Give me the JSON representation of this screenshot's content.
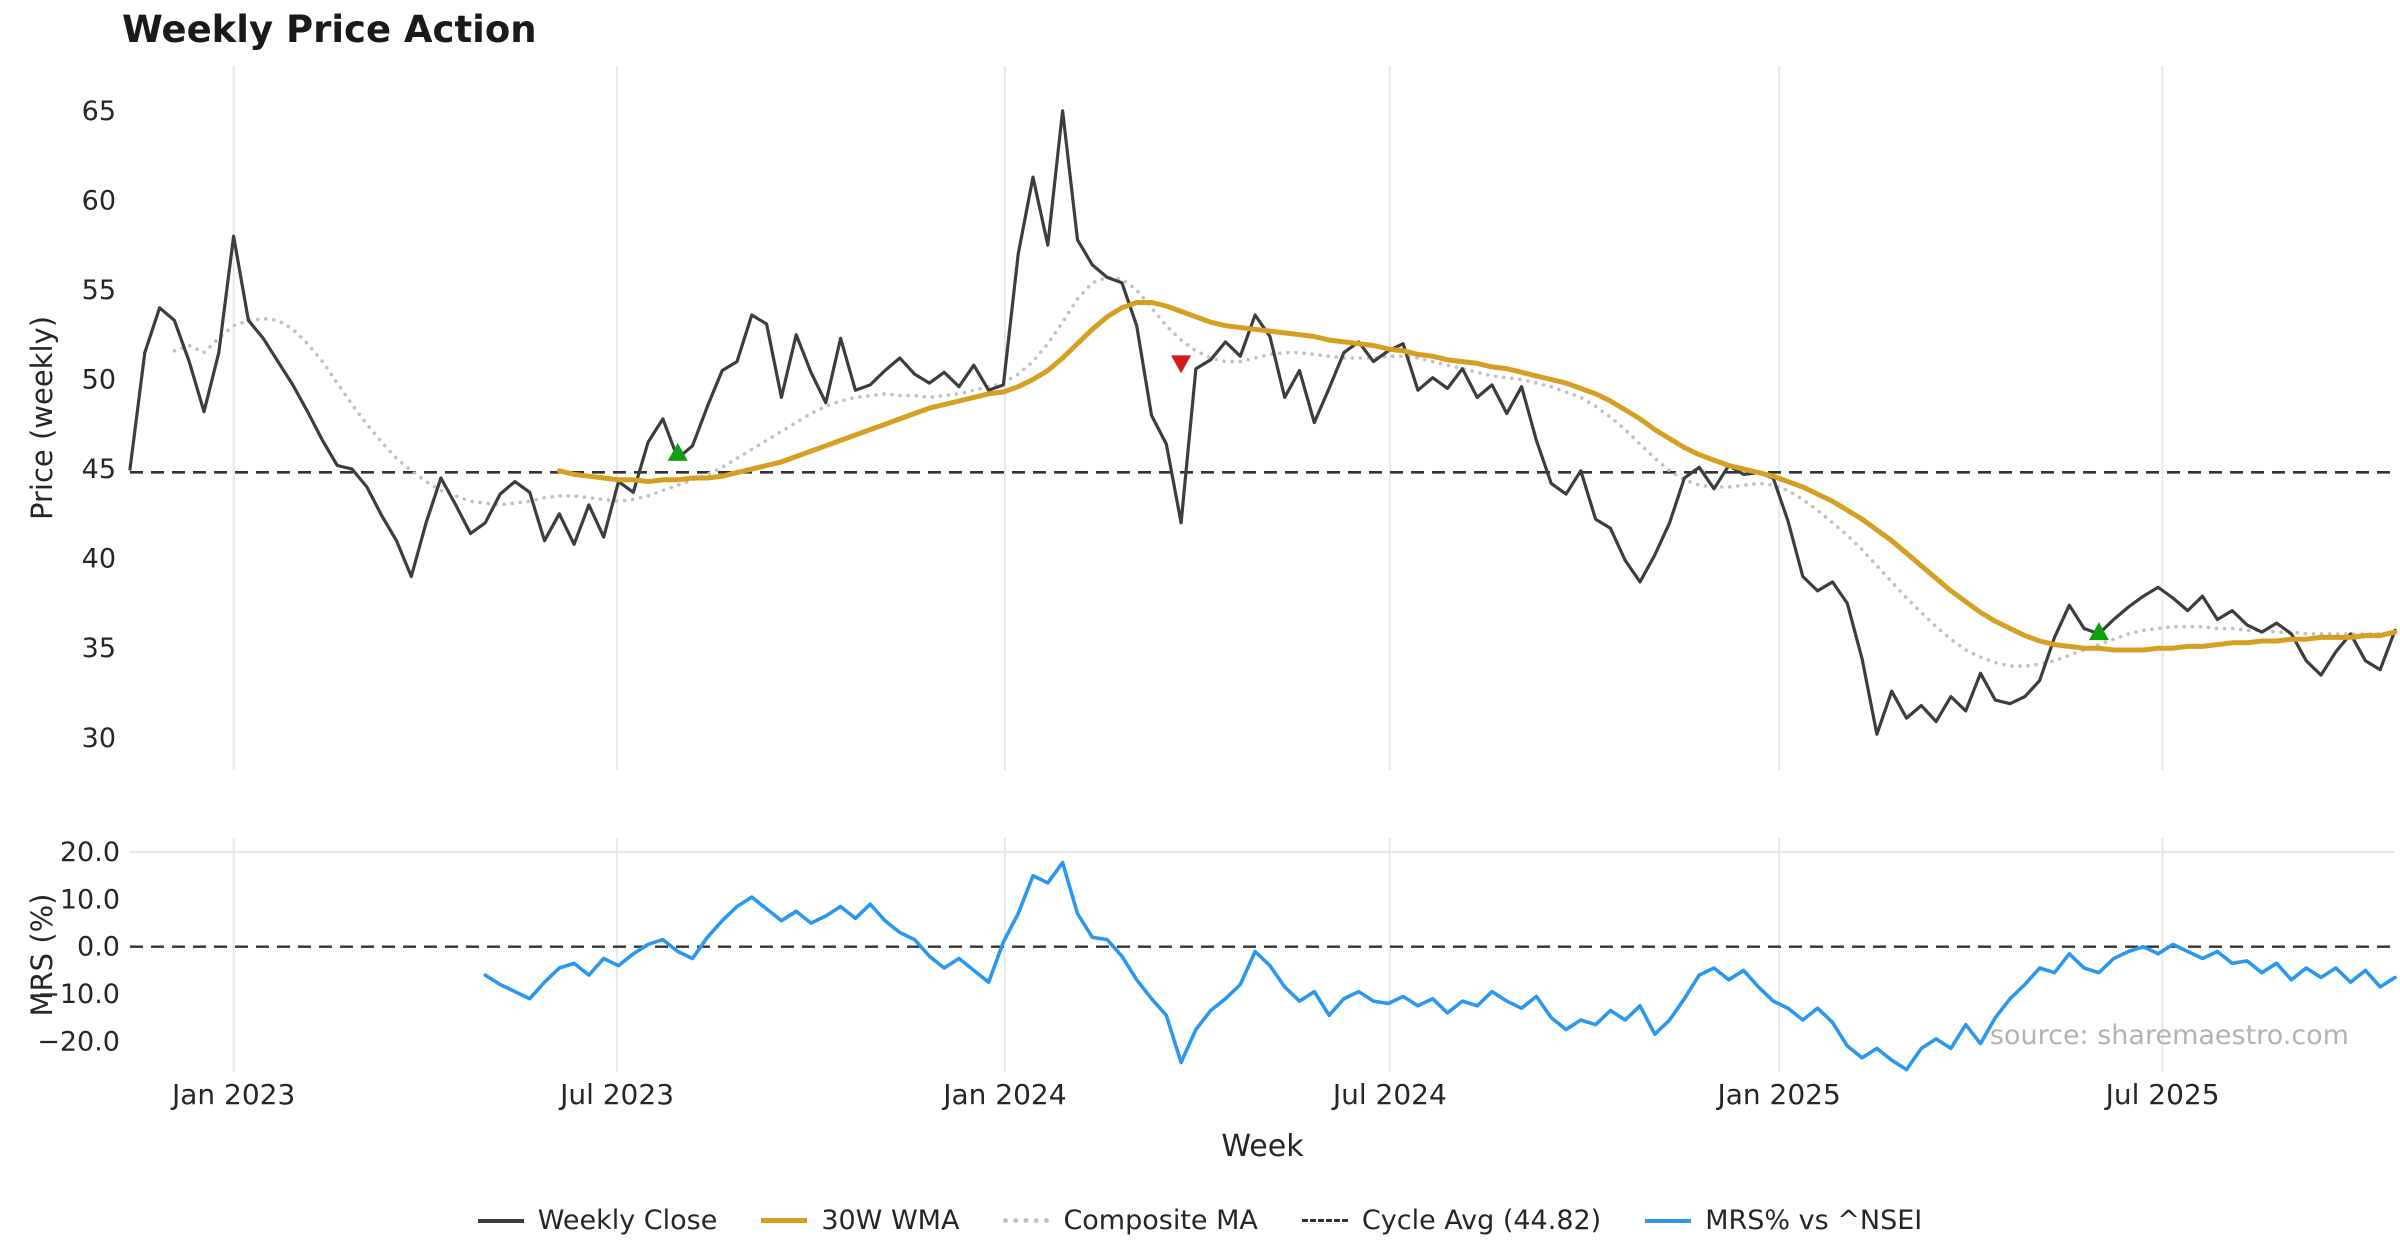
{
  "title": "Weekly Price Action",
  "source": "source: sharemaestro.com",
  "legend": {
    "items": [
      {
        "label": "Weekly Close",
        "color": "#3d3d3d",
        "style": "solid",
        "weight": 4
      },
      {
        "label": "30W WMA",
        "color": "#d5a021",
        "style": "solid",
        "weight": 5
      },
      {
        "label": "Composite MA",
        "color": "#c0c0c0",
        "style": "dotted",
        "weight": 5
      },
      {
        "label": "Cycle Avg (44.82)",
        "color": "#333333",
        "style": "dashed",
        "weight": 3
      },
      {
        "label": "MRS% vs ^NSEI",
        "color": "#2b98f0",
        "style": "solid",
        "weight": 4
      }
    ]
  },
  "chart_data": {
    "type": "line",
    "title": "Weekly Price Action",
    "frequency": "weekly",
    "weeks_total": 154,
    "grid_color": "#e8e8e8",
    "buy_marker_color": "#0da10d",
    "sell_marker_color": "#cf1d1d",
    "x_axis": {
      "label": "Week",
      "ticks": [
        {
          "week": 7.0,
          "label": "Jan 2023"
        },
        {
          "week": 32.9,
          "label": "Jul 2023"
        },
        {
          "week": 59.1,
          "label": "Jan 2024"
        },
        {
          "week": 85.1,
          "label": "Jul 2024"
        },
        {
          "week": 111.4,
          "label": "Jan 2025"
        },
        {
          "week": 137.3,
          "label": "Jul 2025"
        }
      ]
    },
    "panels": [
      {
        "name": "price",
        "ylabel": "Price (weekly)",
        "ylim": [
          28.2,
          67.5
        ],
        "cycle_avg": 44.82,
        "yticks": [
          {
            "value": 65,
            "label": "65"
          },
          {
            "value": 60,
            "label": "60"
          },
          {
            "value": 55,
            "label": "55"
          },
          {
            "value": 50,
            "label": "50"
          },
          {
            "value": 45,
            "label": "45"
          },
          {
            "value": 40,
            "label": "40"
          },
          {
            "value": 35,
            "label": "35"
          },
          {
            "value": 30,
            "label": "30"
          }
        ],
        "series": [
          {
            "name": "Weekly Close",
            "color": "#3d3d3d",
            "style": "solid",
            "width": 3.2,
            "values": [
              45.0,
              51.5,
              54.0,
              53.3,
              51.0,
              48.2,
              51.5,
              58.0,
              53.3,
              52.3,
              51.0,
              49.7,
              48.2,
              46.6,
              45.2,
              45.0,
              44.0,
              42.4,
              41.0,
              39.0,
              42.0,
              44.5,
              43.0,
              41.4,
              42.0,
              43.6,
              44.3,
              43.7,
              41.0,
              42.5,
              40.8,
              43.0,
              41.2,
              44.3,
              43.7,
              46.5,
              47.8,
              45.6,
              46.3,
              48.5,
              50.5,
              51.0,
              53.6,
              53.1,
              49.0,
              52.5,
              50.4,
              48.7,
              52.3,
              49.4,
              49.7,
              50.5,
              51.2,
              50.3,
              49.8,
              50.4,
              49.6,
              50.8,
              49.4,
              49.7,
              57.0,
              61.3,
              57.5,
              65.0,
              57.8,
              56.4,
              55.7,
              55.4,
              53.0,
              48.0,
              46.4,
              42.0,
              50.6,
              51.1,
              52.1,
              51.3,
              53.6,
              52.4,
              49.0,
              50.5,
              47.6,
              49.5,
              51.5,
              52.1,
              51.0,
              51.6,
              52.0,
              49.4,
              50.1,
              49.5,
              50.6,
              49.0,
              49.7,
              48.1,
              49.6,
              46.6,
              44.2,
              43.6,
              44.9,
              42.2,
              41.7,
              39.9,
              38.7,
              40.2,
              42.0,
              44.5,
              45.1,
              43.9,
              45.2,
              44.7,
              44.8,
              44.5,
              42.1,
              39.0,
              38.2,
              38.7,
              37.5,
              34.4,
              30.2,
              32.6,
              31.1,
              31.8,
              30.9,
              32.3,
              31.5,
              33.6,
              32.1,
              31.9,
              32.3,
              33.2,
              35.6,
              37.4,
              36.1,
              35.8,
              36.6,
              37.3,
              37.9,
              38.4,
              37.8,
              37.1,
              37.9,
              36.6,
              37.1,
              36.3,
              35.9,
              36.4,
              35.8,
              34.3,
              33.5,
              34.8,
              35.8,
              34.3,
              33.8,
              36.0
            ]
          },
          {
            "name": "30W WMA",
            "color": "#d5a021",
            "style": "solid",
            "width": 5,
            "values": [
              null,
              null,
              null,
              null,
              null,
              null,
              null,
              null,
              null,
              null,
              null,
              null,
              null,
              null,
              null,
              null,
              null,
              null,
              null,
              null,
              null,
              null,
              null,
              null,
              null,
              null,
              null,
              null,
              null,
              44.9,
              44.7,
              44.6,
              44.5,
              44.4,
              44.4,
              44.3,
              44.4,
              44.4,
              44.5,
              44.5,
              44.6,
              44.8,
              45.0,
              45.2,
              45.4,
              45.7,
              46.0,
              46.3,
              46.6,
              46.9,
              47.2,
              47.5,
              47.8,
              48.1,
              48.4,
              48.6,
              48.8,
              49.0,
              49.2,
              49.3,
              49.6,
              50.0,
              50.5,
              51.2,
              52.0,
              52.8,
              53.5,
              54.0,
              54.3,
              54.3,
              54.1,
              53.8,
              53.5,
              53.2,
              53.0,
              52.9,
              52.8,
              52.7,
              52.6,
              52.5,
              52.4,
              52.2,
              52.1,
              52.0,
              51.9,
              51.7,
              51.6,
              51.4,
              51.3,
              51.1,
              51.0,
              50.9,
              50.7,
              50.6,
              50.4,
              50.2,
              50.0,
              49.8,
              49.5,
              49.2,
              48.8,
              48.3,
              47.8,
              47.2,
              46.7,
              46.2,
              45.8,
              45.5,
              45.2,
              45.0,
              44.8,
              44.6,
              44.3,
              44.0,
              43.6,
              43.2,
              42.7,
              42.2,
              41.6,
              41.0,
              40.3,
              39.6,
              38.9,
              38.2,
              37.6,
              37.0,
              36.5,
              36.1,
              35.7,
              35.4,
              35.2,
              35.1,
              35.0,
              35.0,
              34.9,
              34.9,
              34.9,
              35.0,
              35.0,
              35.1,
              35.1,
              35.2,
              35.3,
              35.3,
              35.4,
              35.4,
              35.5,
              35.5,
              35.6,
              35.6,
              35.6,
              35.7,
              35.7,
              35.9
            ]
          },
          {
            "name": "Composite MA",
            "color": "#c2c2c2",
            "style": "dotted",
            "width": 3.6,
            "values": [
              null,
              null,
              null,
              51.6,
              51.9,
              51.5,
              52.3,
              53.0,
              53.3,
              53.4,
              53.3,
              52.8,
              52.0,
              51.0,
              49.8,
              48.6,
              47.5,
              46.5,
              45.6,
              44.9,
              44.3,
              43.8,
              43.5,
              43.2,
              43.1,
              43.0,
              43.1,
              43.2,
              43.4,
              43.5,
              43.5,
              43.4,
              43.3,
              43.2,
              43.3,
              43.5,
              43.8,
              44.1,
              44.4,
              44.7,
              45.1,
              45.6,
              46.1,
              46.6,
              47.1,
              47.6,
              48.1,
              48.5,
              48.8,
              49.0,
              49.1,
              49.2,
              49.1,
              49.1,
              49.0,
              49.1,
              49.2,
              49.4,
              49.6,
              49.8,
              50.3,
              51.0,
              52.0,
              53.2,
              54.5,
              55.4,
              55.7,
              55.6,
              55.0,
              54.0,
              53.0,
              52.2,
              51.6,
              51.2,
              51.0,
              51.0,
              51.2,
              51.4,
              51.5,
              51.5,
              51.4,
              51.3,
              51.2,
              51.2,
              51.2,
              51.3,
              51.3,
              51.2,
              51.0,
              50.8,
              50.6,
              50.4,
              50.2,
              50.1,
              50.0,
              49.8,
              49.6,
              49.3,
              49.0,
              48.5,
              47.9,
              47.2,
              46.4,
              45.6,
              44.9,
              44.4,
              44.1,
              44.0,
              44.0,
              44.1,
              44.2,
              44.1,
              43.8,
              43.3,
              42.7,
              42.0,
              41.3,
              40.5,
              39.6,
              38.7,
              37.8,
              37.0,
              36.2,
              35.5,
              34.9,
              34.5,
              34.2,
              34.0,
              34.0,
              34.1,
              34.3,
              34.6,
              34.9,
              35.2,
              35.5,
              35.8,
              36.0,
              36.1,
              36.2,
              36.2,
              36.2,
              36.1,
              36.1,
              36.0,
              36.0,
              35.9,
              35.9,
              35.8,
              35.8,
              35.8,
              35.8,
              35.8,
              35.8,
              35.9
            ]
          }
        ],
        "markers": {
          "buy": [
            {
              "week": 37,
              "price": 45.9
            },
            {
              "week": 133,
              "price": 35.9
            }
          ],
          "sell": [
            {
              "week": 71,
              "price": 50.9
            }
          ]
        }
      },
      {
        "name": "mrs",
        "ylabel": "MRS (%)",
        "ylim": [
          -26.5,
          23.0
        ],
        "zero_line": 0,
        "yticks": [
          {
            "value": 20,
            "label": "20.0"
          },
          {
            "value": 10,
            "label": "10.0"
          },
          {
            "value": 0,
            "label": "0.0"
          },
          {
            "value": -10,
            "label": "−10.0"
          },
          {
            "value": -20,
            "label": "−20.0"
          }
        ],
        "series": [
          {
            "name": "MRS% vs ^NSEI",
            "color": "#2b98f0",
            "style": "solid",
            "width": 3.6,
            "values": [
              null,
              null,
              null,
              null,
              null,
              null,
              null,
              null,
              null,
              null,
              null,
              null,
              null,
              null,
              null,
              null,
              null,
              null,
              null,
              null,
              null,
              null,
              null,
              null,
              -6.0,
              -8.0,
              -9.5,
              -11.0,
              -7.5,
              -4.5,
              -3.5,
              -6.0,
              -2.5,
              -4.0,
              -1.5,
              0.5,
              1.5,
              -1.0,
              -2.5,
              2.0,
              5.5,
              8.5,
              10.5,
              8.0,
              5.5,
              7.5,
              5.0,
              6.5,
              8.5,
              6.0,
              9.0,
              5.5,
              3.0,
              1.5,
              -2.0,
              -4.5,
              -2.5,
              -5.0,
              -7.5,
              1.0,
              7.0,
              15.0,
              13.5,
              17.8,
              7.0,
              2.0,
              1.5,
              -2.0,
              -7.0,
              -11.0,
              -14.5,
              -24.5,
              -17.5,
              -13.5,
              -11.0,
              -8.0,
              -1.0,
              -4.0,
              -8.5,
              -11.5,
              -9.5,
              -14.5,
              -11.0,
              -9.5,
              -11.5,
              -12.0,
              -10.5,
              -12.5,
              -11.0,
              -14.0,
              -11.5,
              -12.5,
              -9.5,
              -11.5,
              -13.0,
              -10.5,
              -15.0,
              -17.5,
              -15.5,
              -16.5,
              -13.5,
              -15.5,
              -12.5,
              -18.5,
              -15.5,
              -11.0,
              -6.0,
              -4.5,
              -7.0,
              -5.0,
              -8.5,
              -11.5,
              -13.0,
              -15.5,
              -13.0,
              -16.0,
              -21.0,
              -23.5,
              -21.5,
              -24.0,
              -26.0,
              -21.5,
              -19.5,
              -21.5,
              -16.5,
              -20.5,
              -15.0,
              -11.0,
              -8.0,
              -4.5,
              -5.5,
              -1.5,
              -4.5,
              -5.5,
              -2.5,
              -1.0,
              0.0,
              -1.5,
              0.5,
              -1.0,
              -2.5,
              -1.0,
              -3.5,
              -3.0,
              -5.5,
              -3.5,
              -7.0,
              -4.5,
              -6.5,
              -4.5,
              -7.5,
              -5.0,
              -8.5,
              -6.5
            ]
          }
        ]
      }
    ]
  }
}
